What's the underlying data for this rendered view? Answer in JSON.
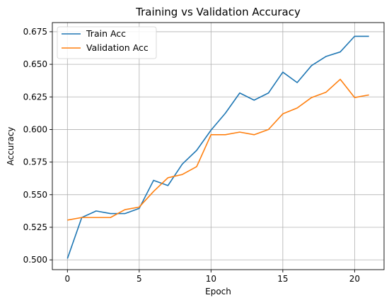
{
  "chart_data": {
    "type": "line",
    "title": "Training vs Validation Accuracy",
    "xlabel": "Epoch",
    "ylabel": "Accuracy",
    "xlim": [
      -1.05,
      22.05
    ],
    "ylim": [
      0.4925,
      0.682
    ],
    "xticks": [
      0,
      5,
      10,
      15,
      20
    ],
    "yticks": [
      0.5,
      0.525,
      0.55,
      0.575,
      0.6,
      0.625,
      0.65,
      0.675
    ],
    "ytick_labels": [
      "0.500",
      "0.525",
      "0.550",
      "0.575",
      "0.600",
      "0.625",
      "0.650",
      "0.675"
    ],
    "grid": true,
    "legend_position": "top-left",
    "x": [
      0,
      1,
      2,
      3,
      4,
      5,
      6,
      7,
      8,
      9,
      10,
      11,
      12,
      13,
      14,
      15,
      16,
      17,
      18,
      19,
      20,
      21
    ],
    "series": [
      {
        "name": "Train Acc",
        "color": "#1f77b4",
        "values": [
          0.501,
          0.5325,
          0.5375,
          0.5355,
          0.5355,
          0.5395,
          0.561,
          0.557,
          0.5735,
          0.584,
          0.5995,
          0.6125,
          0.628,
          0.6225,
          0.628,
          0.644,
          0.636,
          0.649,
          0.656,
          0.6595,
          0.6715,
          0.6715
        ]
      },
      {
        "name": "Validation Acc",
        "color": "#ff7f0e",
        "values": [
          0.5305,
          0.5325,
          0.5325,
          0.5325,
          0.5385,
          0.5405,
          0.5525,
          0.563,
          0.5655,
          0.5715,
          0.596,
          0.596,
          0.598,
          0.596,
          0.6,
          0.612,
          0.6165,
          0.6245,
          0.6285,
          0.6385,
          0.6245,
          0.6265
        ]
      }
    ]
  }
}
